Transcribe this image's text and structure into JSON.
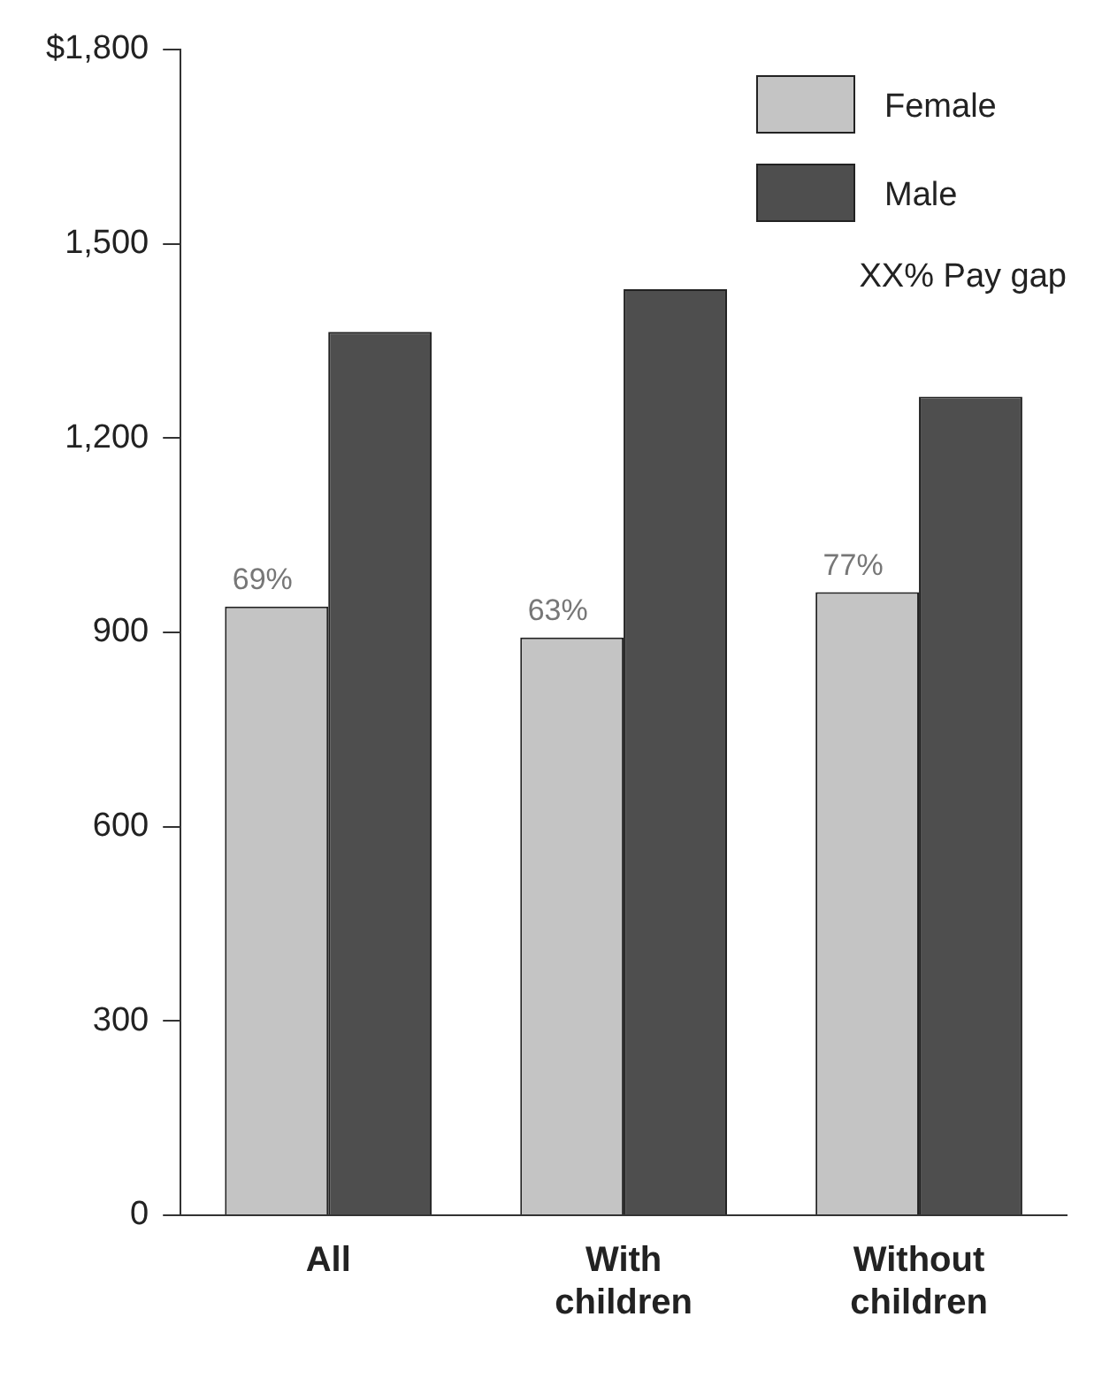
{
  "chart_data": {
    "type": "bar",
    "categories": [
      "All",
      "With children",
      "Without children"
    ],
    "series": [
      {
        "name": "Female",
        "color": "#c4c4c4",
        "values": [
          940,
          892,
          962
        ]
      },
      {
        "name": "Male",
        "color": "#4e4e4e",
        "values": [
          1364,
          1430,
          1264
        ]
      }
    ],
    "ylim": [
      0,
      1800
    ],
    "yticks": [
      {
        "value": 0,
        "label": "0"
      },
      {
        "value": 300,
        "label": "300"
      },
      {
        "value": 600,
        "label": "600"
      },
      {
        "value": 900,
        "label": "900"
      },
      {
        "value": 1200,
        "label": "1,200"
      },
      {
        "value": 1500,
        "label": "1,500"
      },
      {
        "value": 1800,
        "label": "$1,800"
      }
    ],
    "grid": false,
    "legend": "top right",
    "annotations": [
      "XX% Pay gap",
      {
        "text": "69%",
        "x": "All",
        "y": 940
      },
      {
        "text": "63%",
        "x": "With children",
        "y": 892
      },
      {
        "text": "77%",
        "x": "Without children",
        "y": 962
      }
    ]
  }
}
